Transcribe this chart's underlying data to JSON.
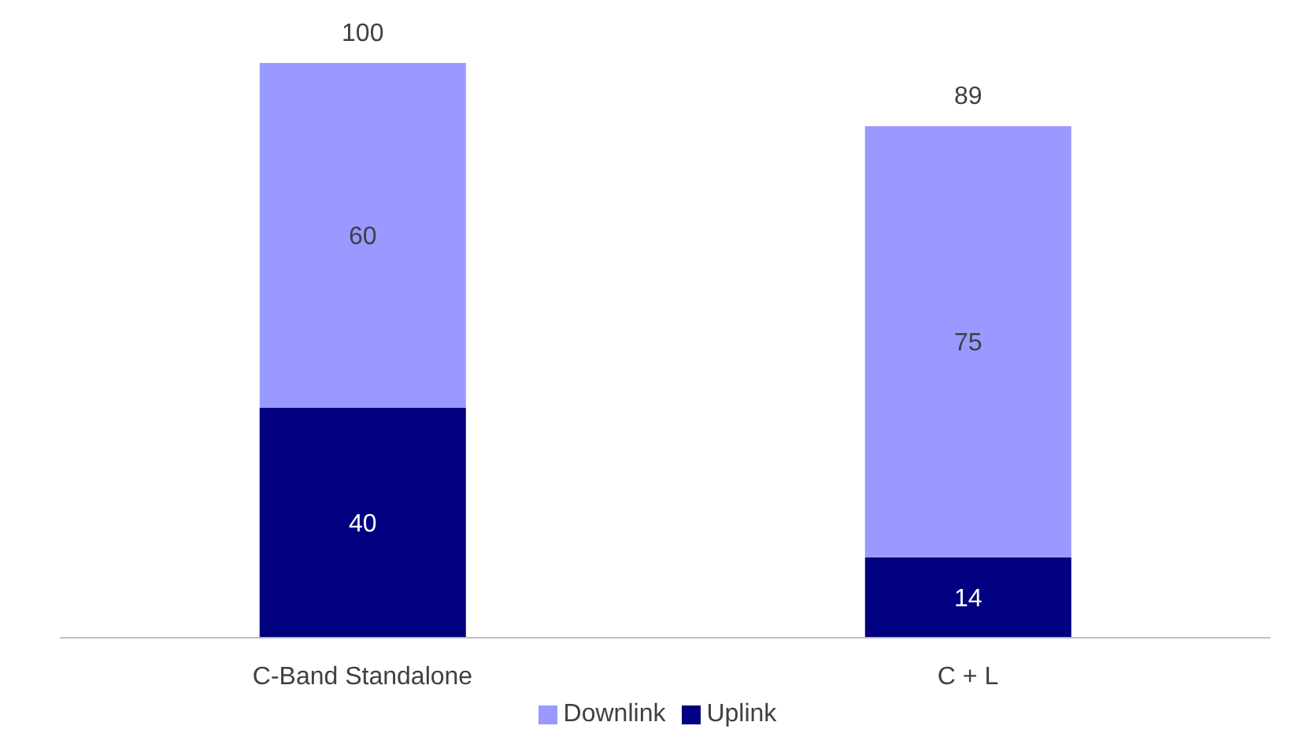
{
  "chart_data": {
    "type": "bar",
    "stacked": true,
    "categories": [
      "C-Band Standalone",
      "C + L"
    ],
    "series": [
      {
        "name": "Uplink",
        "color": "#000080",
        "values": [
          40,
          14
        ]
      },
      {
        "name": "Downlink",
        "color": "#9999ff",
        "values": [
          60,
          75
        ]
      }
    ],
    "data_labels": true,
    "totals": [
      "100",
      "89"
    ],
    "legend": "bottom",
    "grid": false
  }
}
